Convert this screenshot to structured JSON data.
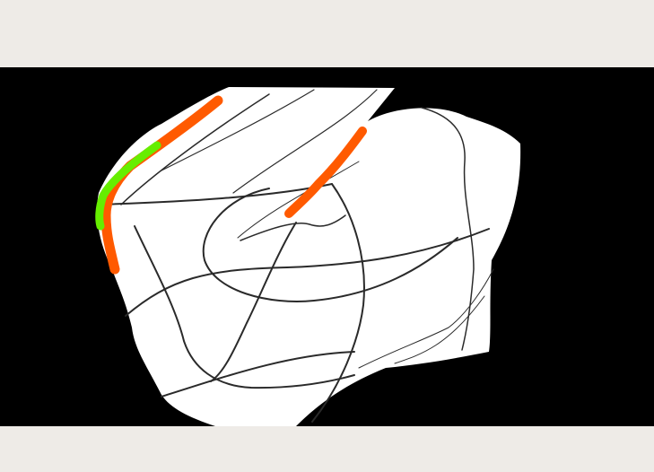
{
  "colors": {
    "background": "#eeebe7",
    "viewport": "#000000",
    "surface": "#ffffff",
    "curve": "#2a2a2a",
    "stroke_orange": "#ff5a00",
    "stroke_green": "#66ee00"
  }
}
